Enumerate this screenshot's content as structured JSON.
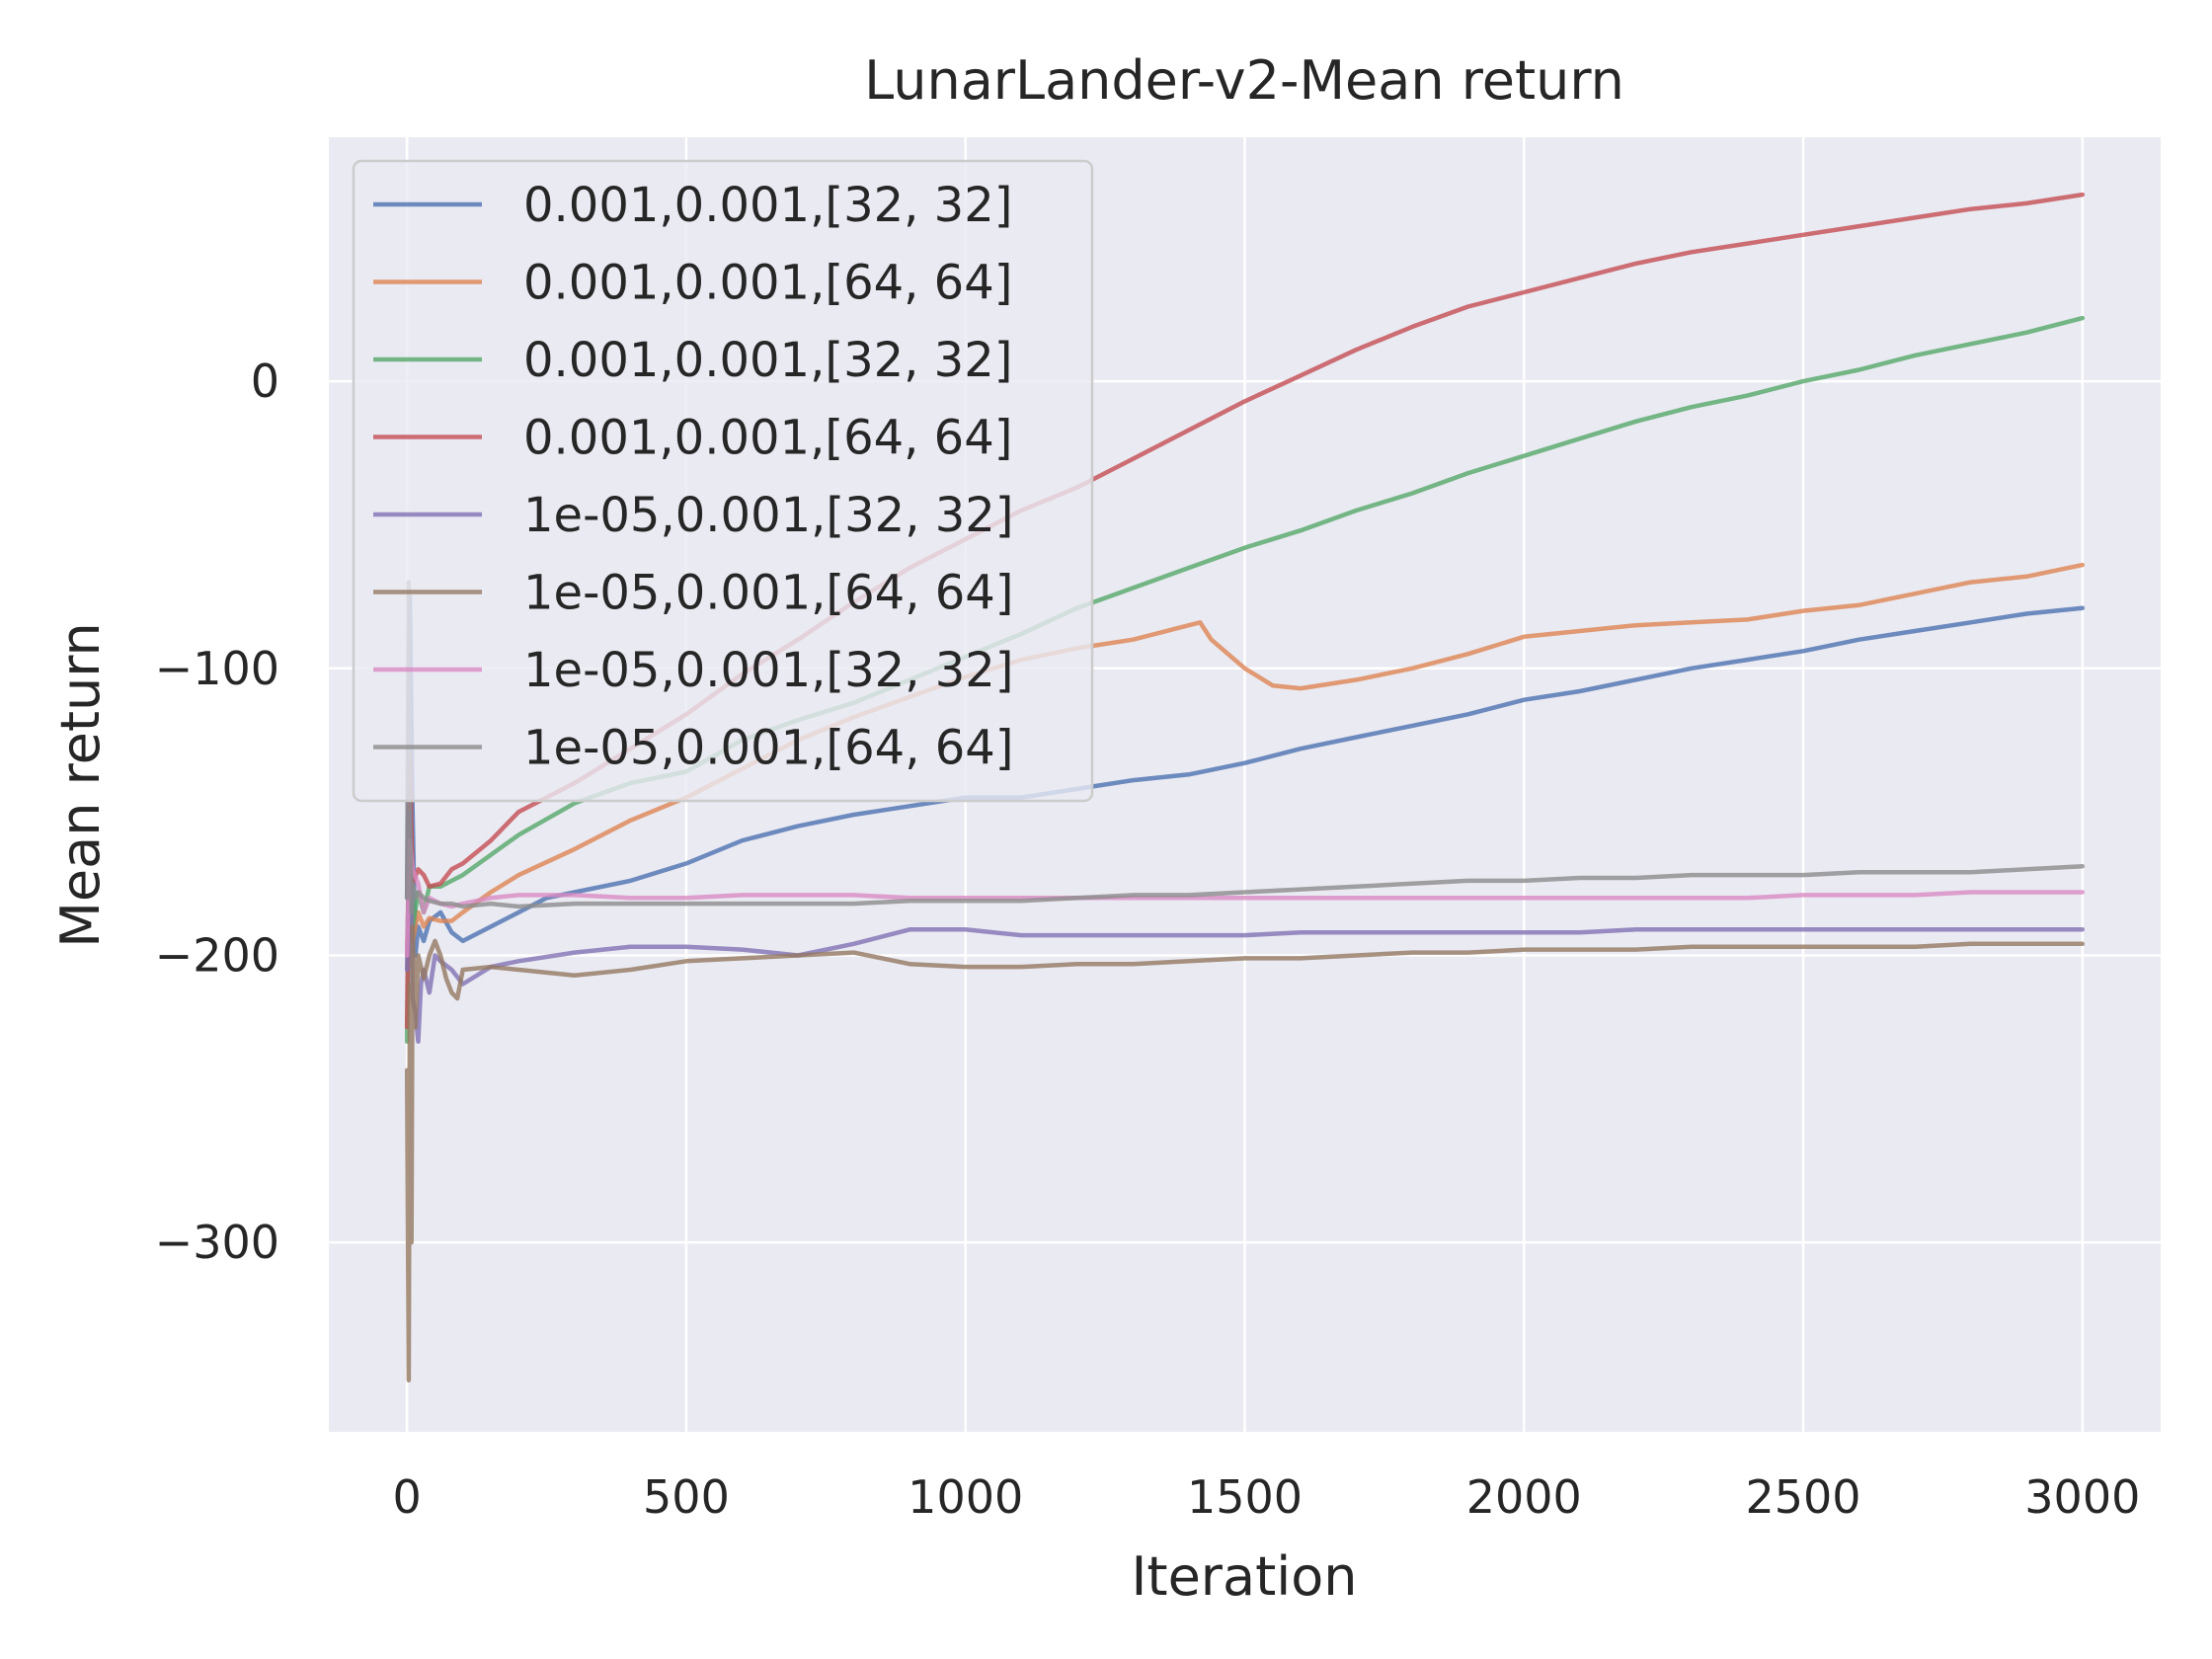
{
  "chart_data": {
    "type": "line",
    "title": "LunarLander-v2-Mean return",
    "xlabel": "Iteration",
    "ylabel": "Mean return",
    "xlim": [
      -140,
      3140
    ],
    "ylim": [
      -366,
      85
    ],
    "x_ticks": [
      0,
      500,
      1000,
      1500,
      2000,
      2500,
      3000
    ],
    "x_tick_labels": [
      "0",
      "500",
      "1000",
      "1500",
      "2000",
      "2500",
      "3000"
    ],
    "y_ticks": [
      -300,
      -200,
      -100,
      0
    ],
    "y_tick_labels": [
      "−300",
      "−200",
      "−100",
      "0"
    ],
    "grid": true,
    "legend_placement": "top-left",
    "series": [
      {
        "name": "0.001,0.001,[32, 32]",
        "color": "#4c72b0",
        "x": [
          0,
          5,
          10,
          15,
          20,
          30,
          40,
          60,
          80,
          100,
          150,
          200,
          250,
          300,
          400,
          500,
          600,
          700,
          800,
          900,
          1000,
          1100,
          1200,
          1300,
          1400,
          1500,
          1600,
          1700,
          1800,
          1900,
          2000,
          2100,
          2200,
          2300,
          2400,
          2500,
          2600,
          2700,
          2800,
          2900,
          3000
        ],
        "y": [
          -180,
          -75,
          -150,
          -200,
          -190,
          -195,
          -188,
          -185,
          -192,
          -195,
          -190,
          -185,
          -180,
          -178,
          -174,
          -168,
          -160,
          -155,
          -151,
          -148,
          -145,
          -145,
          -142,
          -139,
          -137,
          -133,
          -128,
          -124,
          -120,
          -116,
          -111,
          -108,
          -104,
          -100,
          -97,
          -94,
          -90,
          -87,
          -84,
          -81,
          -79
        ]
      },
      {
        "name": "0.001,0.001,[64, 64]",
        "color": "#dd8452",
        "x": [
          0,
          5,
          10,
          20,
          30,
          40,
          60,
          80,
          100,
          150,
          200,
          300,
          400,
          500,
          600,
          700,
          800,
          900,
          1000,
          1100,
          1200,
          1300,
          1380,
          1400,
          1420,
          1440,
          1500,
          1550,
          1600,
          1700,
          1800,
          1900,
          2000,
          2100,
          2200,
          2300,
          2400,
          2500,
          2600,
          2700,
          2800,
          2900,
          3000
        ],
        "y": [
          -200,
          -150,
          -195,
          -185,
          -190,
          -187,
          -188,
          -188,
          -185,
          -178,
          -172,
          -163,
          -153,
          -145,
          -135,
          -125,
          -117,
          -110,
          -103,
          -97,
          -93,
          -90,
          -86,
          -85,
          -84,
          -90,
          -100,
          -106,
          -107,
          -104,
          -100,
          -95,
          -89,
          -87,
          -85,
          -84,
          -83,
          -80,
          -78,
          -74,
          -70,
          -68,
          -64
        ]
      },
      {
        "name": "0.001,0.001,[32, 32]",
        "color": "#55a868",
        "x": [
          0,
          5,
          10,
          20,
          30,
          40,
          60,
          80,
          100,
          150,
          200,
          300,
          400,
          500,
          600,
          700,
          800,
          900,
          1000,
          1100,
          1200,
          1300,
          1400,
          1500,
          1600,
          1700,
          1800,
          1900,
          2000,
          2100,
          2200,
          2300,
          2400,
          2500,
          2600,
          2700,
          2800,
          2900,
          3000
        ],
        "y": [
          -230,
          -150,
          -190,
          -178,
          -185,
          -176,
          -176,
          -174,
          -172,
          -165,
          -158,
          -147,
          -140,
          -136,
          -125,
          -118,
          -112,
          -104,
          -96,
          -88,
          -79,
          -72,
          -65,
          -58,
          -52,
          -45,
          -39,
          -32,
          -26,
          -20,
          -14,
          -9,
          -5,
          0,
          4,
          9,
          13,
          17,
          22
        ]
      },
      {
        "name": "0.001,0.001,[64, 64]",
        "color": "#c44e52",
        "x": [
          0,
          5,
          10,
          20,
          30,
          40,
          60,
          80,
          100,
          150,
          200,
          300,
          400,
          500,
          600,
          700,
          800,
          900,
          1000,
          1100,
          1200,
          1300,
          1400,
          1500,
          1600,
          1700,
          1800,
          1900,
          2000,
          2100,
          2200,
          2300,
          2400,
          2500,
          2600,
          2700,
          2800,
          2900,
          3000
        ],
        "y": [
          -225,
          -130,
          -175,
          -170,
          -172,
          -176,
          -175,
          -170,
          -168,
          -160,
          -150,
          -140,
          -128,
          -116,
          -102,
          -90,
          -77,
          -65,
          -55,
          -45,
          -37,
          -27,
          -17,
          -7,
          2,
          11,
          19,
          26,
          31,
          36,
          41,
          45,
          48,
          51,
          54,
          57,
          60,
          62,
          65
        ]
      },
      {
        "name": "1e-05,0.001,[32, 32]",
        "color": "#8172b3",
        "x": [
          0,
          5,
          10,
          15,
          20,
          25,
          30,
          40,
          50,
          60,
          80,
          100,
          150,
          200,
          300,
          400,
          500,
          600,
          700,
          800,
          900,
          1000,
          1100,
          1200,
          1300,
          1400,
          1500,
          1600,
          1700,
          1800,
          1900,
          2000,
          2100,
          2200,
          2300,
          2400,
          2500,
          2600,
          2700,
          2800,
          2900,
          3000
        ],
        "y": [
          -205,
          -150,
          -215,
          -220,
          -230,
          -210,
          -205,
          -213,
          -200,
          -202,
          -205,
          -210,
          -204,
          -202,
          -199,
          -197,
          -197,
          -198,
          -200,
          -196,
          -191,
          -191,
          -193,
          -193,
          -193,
          -193,
          -193,
          -192,
          -192,
          -192,
          -192,
          -192,
          -192,
          -191,
          -191,
          -191,
          -191,
          -191,
          -191,
          -191,
          -191,
          -191
        ]
      },
      {
        "name": "1e-05,0.001,[64, 64]",
        "color": "#937860",
        "x": [
          0,
          3,
          5,
          8,
          10,
          15,
          20,
          30,
          40,
          50,
          60,
          70,
          80,
          90,
          100,
          150,
          200,
          250,
          300,
          400,
          500,
          600,
          700,
          800,
          900,
          1000,
          1100,
          1200,
          1300,
          1400,
          1500,
          1600,
          1700,
          1800,
          1900,
          2000,
          2100,
          2200,
          2300,
          2400,
          2500,
          2600,
          2700,
          2800,
          2900,
          3000
        ],
        "y": [
          -240,
          -348,
          -210,
          -300,
          -190,
          -225,
          -200,
          -208,
          -200,
          -195,
          -200,
          -208,
          -213,
          -215,
          -205,
          -204,
          -205,
          -206,
          -207,
          -205,
          -202,
          -201,
          -200,
          -199,
          -203,
          -204,
          -204,
          -203,
          -203,
          -202,
          -201,
          -201,
          -200,
          -199,
          -199,
          -198,
          -198,
          -198,
          -197,
          -197,
          -197,
          -197,
          -197,
          -196,
          -196,
          -196
        ]
      },
      {
        "name": "1e-05,0.001,[32, 32]",
        "color": "#da8bc3",
        "x": [
          0,
          5,
          10,
          20,
          30,
          40,
          60,
          80,
          100,
          150,
          200,
          300,
          400,
          500,
          600,
          700,
          800,
          900,
          1000,
          1100,
          1200,
          1300,
          1400,
          1500,
          1600,
          1700,
          1800,
          1900,
          2000,
          2100,
          2200,
          2300,
          2400,
          2500,
          2600,
          2700,
          2800,
          2900,
          3000
        ],
        "y": [
          -200,
          -160,
          -170,
          -175,
          -185,
          -180,
          -182,
          -183,
          -182,
          -180,
          -179,
          -179,
          -180,
          -180,
          -179,
          -179,
          -179,
          -180,
          -180,
          -180,
          -180,
          -180,
          -180,
          -180,
          -180,
          -180,
          -180,
          -180,
          -180,
          -180,
          -180,
          -180,
          -180,
          -179,
          -179,
          -179,
          -178,
          -178,
          -178
        ]
      },
      {
        "name": "1e-05,0.001,[64, 64]",
        "color": "#8c8c8c",
        "x": [
          0,
          3,
          5,
          8,
          10,
          15,
          20,
          30,
          40,
          60,
          80,
          100,
          150,
          200,
          300,
          400,
          500,
          600,
          700,
          800,
          900,
          1000,
          1100,
          1200,
          1300,
          1400,
          1500,
          1600,
          1700,
          1800,
          1900,
          2000,
          2100,
          2200,
          2300,
          2400,
          2500,
          2600,
          2700,
          2800,
          2900,
          3000
        ],
        "y": [
          -180,
          -70,
          -150,
          -185,
          -175,
          -180,
          -178,
          -180,
          -181,
          -182,
          -182,
          -183,
          -182,
          -183,
          -182,
          -182,
          -182,
          -182,
          -182,
          -182,
          -181,
          -181,
          -181,
          -180,
          -179,
          -179,
          -178,
          -177,
          -176,
          -175,
          -174,
          -174,
          -173,
          -173,
          -172,
          -172,
          -172,
          -171,
          -171,
          -171,
          -170,
          -169
        ]
      }
    ]
  }
}
